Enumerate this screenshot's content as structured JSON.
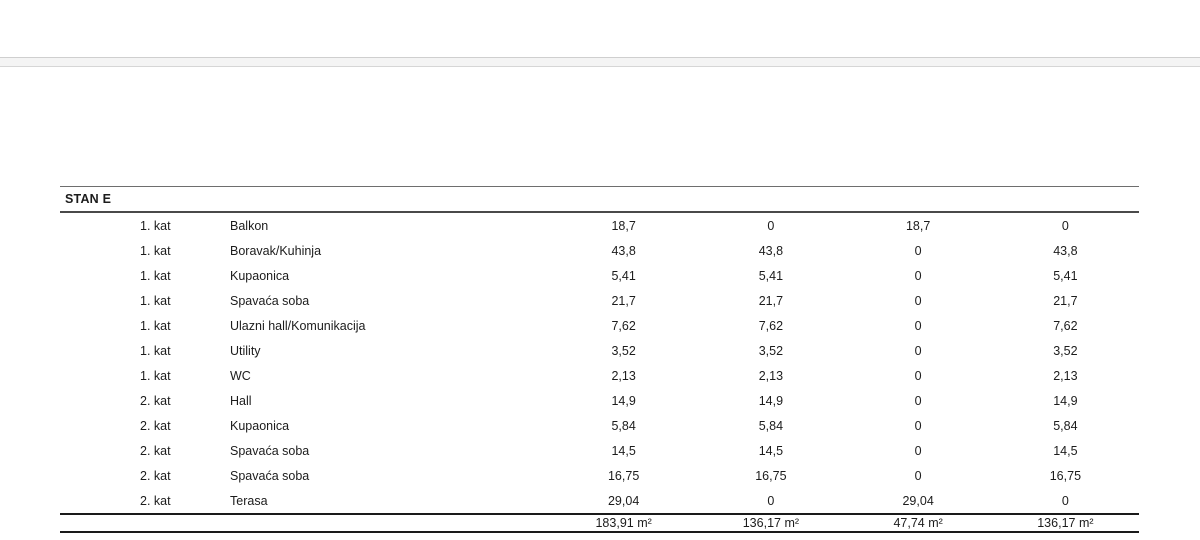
{
  "page": {
    "background_color": "#ffffff",
    "divider_band_color": "#f4f4f4",
    "divider_line_color": "#cfcfcf",
    "text_color": "#1c1c1c"
  },
  "table": {
    "section_title": "STAN E",
    "rows": [
      {
        "floor": "1. kat",
        "room": "Balkon",
        "values": [
          "18,7",
          "0",
          "18,7",
          "0"
        ]
      },
      {
        "floor": "1. kat",
        "room": "Boravak/Kuhinja",
        "values": [
          "43,8",
          "43,8",
          "0",
          "43,8"
        ]
      },
      {
        "floor": "1. kat",
        "room": "Kupaonica",
        "values": [
          "5,41",
          "5,41",
          "0",
          "5,41"
        ]
      },
      {
        "floor": "1. kat",
        "room": "Spavaća soba",
        "values": [
          "21,7",
          "21,7",
          "0",
          "21,7"
        ]
      },
      {
        "floor": "1. kat",
        "room": "Ulazni hall/Komunikacija",
        "values": [
          "7,62",
          "7,62",
          "0",
          "7,62"
        ]
      },
      {
        "floor": "1. kat",
        "room": "Utility",
        "values": [
          "3,52",
          "3,52",
          "0",
          "3,52"
        ]
      },
      {
        "floor": "1. kat",
        "room": "WC",
        "values": [
          "2,13",
          "2,13",
          "0",
          "2,13"
        ]
      },
      {
        "floor": "2. kat",
        "room": "Hall",
        "values": [
          "14,9",
          "14,9",
          "0",
          "14,9"
        ]
      },
      {
        "floor": "2. kat",
        "room": "Kupaonica",
        "values": [
          "5,84",
          "5,84",
          "0",
          "5,84"
        ]
      },
      {
        "floor": "2. kat",
        "room": "Spavaća soba",
        "values": [
          "14,5",
          "14,5",
          "0",
          "14,5"
        ]
      },
      {
        "floor": "2. kat",
        "room": "Spavaća soba",
        "values": [
          "16,75",
          "16,75",
          "0",
          "16,75"
        ]
      },
      {
        "floor": "2. kat",
        "room": "Terasa",
        "values": [
          "29,04",
          "0",
          "29,04",
          "0"
        ]
      }
    ],
    "totals": [
      "183,91 m²",
      "136,17 m²",
      "47,74 m²",
      "136,17 m²"
    ]
  }
}
